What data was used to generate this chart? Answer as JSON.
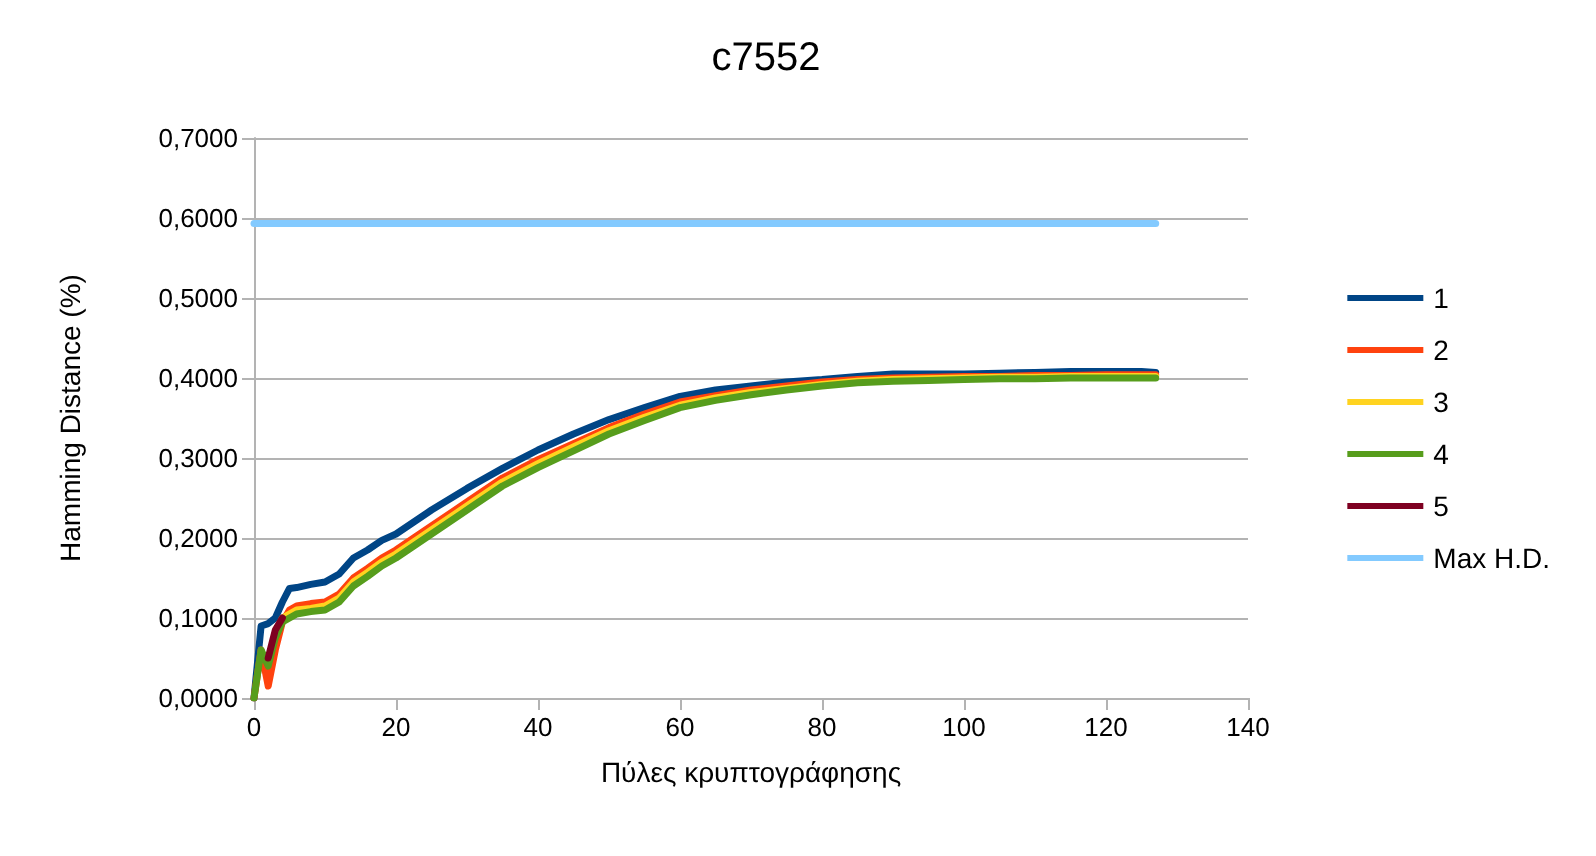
{
  "chart_data": {
    "type": "line",
    "title": "c7552",
    "xlabel": "Πύλες κρυπτογράφησης",
    "ylabel": "Hamming Distance (%)",
    "x": [
      0,
      1,
      2,
      3,
      4,
      5,
      6,
      8,
      10,
      12,
      14,
      16,
      18,
      20,
      25,
      30,
      35,
      40,
      45,
      50,
      55,
      60,
      65,
      70,
      75,
      80,
      85,
      90,
      95,
      100,
      105,
      110,
      115,
      120,
      125,
      127
    ],
    "series": [
      {
        "name": "1",
        "color": "#004586",
        "values": [
          0,
          0.09,
          0.093,
          0.1,
          0.12,
          0.137,
          0.138,
          0.142,
          0.145,
          0.155,
          0.175,
          0.185,
          0.197,
          0.205,
          0.235,
          0.262,
          0.287,
          0.31,
          0.33,
          0.348,
          0.363,
          0.377,
          0.385,
          0.39,
          0.395,
          0.398,
          0.402,
          0.405,
          0.405,
          0.405,
          0.406,
          0.407,
          0.408,
          0.408,
          0.408,
          0.407
        ]
      },
      {
        "name": "2",
        "color": "#ff420e",
        "values": [
          0,
          0.06,
          0.015,
          0.06,
          0.095,
          0.11,
          0.115,
          0.118,
          0.12,
          0.13,
          0.15,
          0.162,
          0.175,
          0.185,
          0.215,
          0.245,
          0.275,
          0.298,
          0.318,
          0.338,
          0.355,
          0.37,
          0.378,
          0.385,
          0.39,
          0.395,
          0.398,
          0.4,
          0.401,
          0.402,
          0.402,
          0.403,
          0.403,
          0.404,
          0.404,
          0.404
        ]
      },
      {
        "name": "3",
        "color": "#ffd320",
        "values": [
          null,
          null,
          null,
          0.08,
          0.1,
          0.105,
          0.11,
          0.112,
          0.115,
          0.125,
          0.145,
          0.157,
          0.17,
          0.18,
          0.21,
          0.24,
          0.27,
          0.293,
          0.314,
          0.334,
          0.351,
          0.366,
          0.375,
          0.382,
          0.387,
          0.392,
          0.396,
          0.398,
          0.399,
          0.4,
          0.401,
          0.401,
          0.402,
          0.402,
          0.402,
          0.402
        ]
      },
      {
        "name": "4",
        "color": "#579d1c",
        "values": [
          0,
          0.06,
          0.04,
          0.075,
          0.095,
          0.1,
          0.105,
          0.108,
          0.11,
          0.12,
          0.14,
          0.152,
          0.165,
          0.175,
          0.205,
          0.235,
          0.265,
          0.288,
          0.309,
          0.33,
          0.347,
          0.363,
          0.372,
          0.379,
          0.385,
          0.39,
          0.394,
          0.396,
          0.397,
          0.398,
          0.399,
          0.399,
          0.4,
          0.4,
          0.4,
          0.4
        ]
      },
      {
        "name": "5",
        "color": "#7e0021",
        "values": [
          null,
          null,
          0.05,
          0.085,
          0.1,
          null,
          null,
          null,
          null,
          null,
          null,
          null,
          null,
          null,
          null,
          null,
          null,
          null,
          null,
          null,
          null,
          null,
          null,
          null,
          null,
          null,
          null,
          null,
          null,
          null,
          null,
          null,
          null,
          null,
          null,
          null
        ]
      },
      {
        "name": "Max H.D.",
        "color": "#83caff",
        "values": [
          0.593,
          0.593,
          0.593,
          0.593,
          0.593,
          0.593,
          0.593,
          0.593,
          0.593,
          0.593,
          0.593,
          0.593,
          0.593,
          0.593,
          0.593,
          0.593,
          0.593,
          0.593,
          0.593,
          0.593,
          0.593,
          0.593,
          0.593,
          0.593,
          0.593,
          0.593,
          0.593,
          0.593,
          0.593,
          0.593,
          0.593,
          0.593,
          0.593,
          0.593,
          0.593,
          0.593
        ]
      }
    ],
    "xlim": [
      0,
      140
    ],
    "xticks": [
      0,
      20,
      40,
      60,
      80,
      100,
      120,
      140
    ],
    "ylim": [
      0,
      0.7
    ],
    "yticks": [
      {
        "value": 0,
        "label": "0,0000"
      },
      {
        "value": 0.1,
        "label": "0,1000"
      },
      {
        "value": 0.2,
        "label": "0,2000"
      },
      {
        "value": 0.3,
        "label": "0,3000"
      },
      {
        "value": 0.4,
        "label": "0,4000"
      },
      {
        "value": 0.5,
        "label": "0,5000"
      },
      {
        "value": 0.6,
        "label": "0,6000"
      },
      {
        "value": 0.7,
        "label": "0,7000"
      }
    ],
    "grid": "y",
    "legend": "right",
    "marker": "none",
    "line_style": "solid"
  }
}
